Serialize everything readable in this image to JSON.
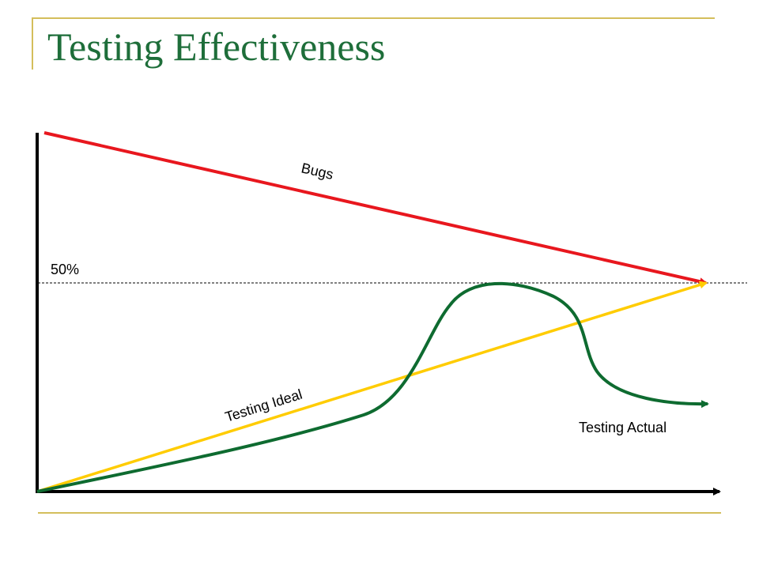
{
  "slide": {
    "title": "Testing Effectiveness",
    "accent_color": "#D4BE5C",
    "title_color": "#1E6E3A"
  },
  "diagram": {
    "threshold_label": "50%",
    "series": [
      {
        "name": "Bugs",
        "color": "#E8171E"
      },
      {
        "name": "Testing Ideal",
        "color": "#FFCC00"
      },
      {
        "name": "Testing Actual",
        "color": "#0E6B30"
      }
    ]
  }
}
